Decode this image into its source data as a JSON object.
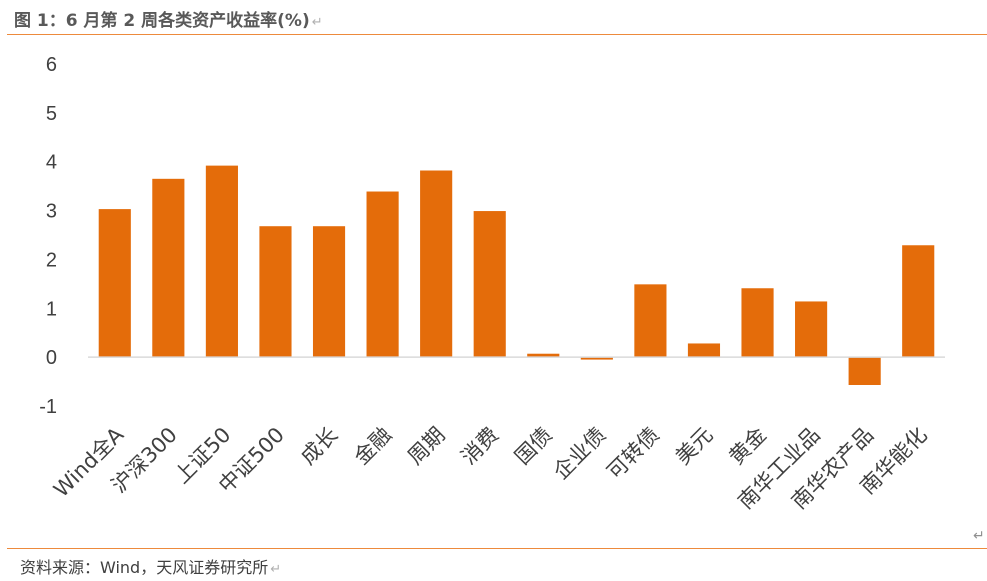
{
  "header": {
    "title": "图 1：6 月第 2 周各类资产收益率(%)",
    "paragraph_mark": "↵"
  },
  "footer": {
    "source": "资料来源：Wind，天风证券研究所",
    "paragraph_mark": "↵"
  },
  "chart_data": {
    "type": "bar",
    "title": "",
    "xlabel": "",
    "ylabel": "",
    "categories": [
      "Wind全A",
      "沪深300",
      "上证50",
      "中证500",
      "成长",
      "金融",
      "周期",
      "消费",
      "国债",
      "企业债",
      "可转债",
      "美元",
      "黄金",
      "南华工业品",
      "南华农产品",
      "南华能化"
    ],
    "values": [
      3.03,
      3.65,
      3.92,
      2.68,
      2.68,
      3.39,
      3.82,
      2.99,
      0.07,
      -0.05,
      1.49,
      0.28,
      1.41,
      1.14,
      -0.57,
      2.29
    ],
    "ylim": [
      -1,
      6
    ],
    "yticks": [
      -1,
      0,
      1,
      2,
      3,
      4,
      5,
      6
    ],
    "grid": false,
    "legend": "none",
    "bar_color": "#e46c0a",
    "axis_color": "#d9d9d9"
  }
}
